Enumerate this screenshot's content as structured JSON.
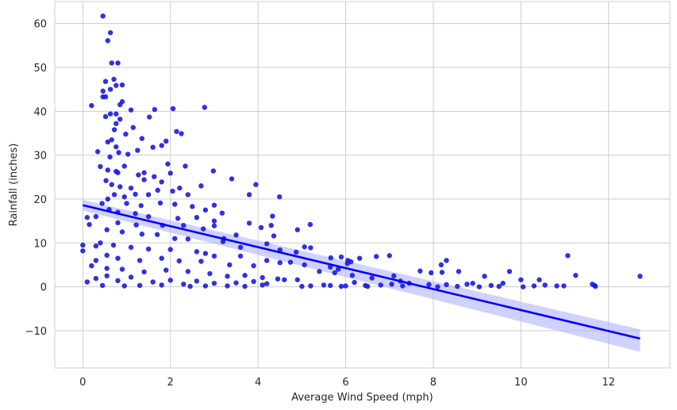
{
  "chart_data": {
    "type": "scatter",
    "title": "",
    "xlabel": "Average Wind Speed (mph)",
    "ylabel": "Rainfall (inches)",
    "xlim": [
      -0.64,
      13.4
    ],
    "ylim": [
      -18.5,
      65
    ],
    "x_ticks": [
      0,
      2,
      4,
      6,
      8,
      10,
      12
    ],
    "y_ticks": [
      -10,
      0,
      10,
      20,
      30,
      40,
      50,
      60
    ],
    "grid": true,
    "legend": "none",
    "point_color": "#1a1ae6",
    "line_color": "#0000ff",
    "ci_color": "#b3b3ff",
    "regression": {
      "x_start": 0,
      "y_start": 18.6,
      "x_end": 12.72,
      "y_end": -11.8,
      "ci_start": [
        17.4,
        19.8
      ],
      "ci_end": [
        -14.8,
        -9.7
      ]
    },
    "series": [
      {
        "values_xy": [
          [
            0.46,
            61.7
          ],
          [
            0.63,
            57.9
          ],
          [
            0.57,
            56.1
          ],
          [
            0.66,
            51.0
          ],
          [
            0.8,
            51.0
          ],
          [
            0.71,
            47.3
          ],
          [
            0.52,
            46.8
          ],
          [
            0.9,
            46.0
          ],
          [
            0.76,
            45.9
          ],
          [
            0.63,
            45.0
          ],
          [
            0.46,
            44.6
          ],
          [
            0.46,
            43.3
          ],
          [
            0.52,
            43.3
          ],
          [
            0.9,
            42.2
          ],
          [
            0.85,
            41.5
          ],
          [
            0.2,
            41.3
          ],
          [
            1.64,
            40.4
          ],
          [
            2.06,
            40.6
          ],
          [
            2.78,
            40.9
          ],
          [
            1.1,
            40.3
          ],
          [
            0.76,
            39.4
          ],
          [
            0.52,
            38.8
          ],
          [
            0.63,
            39.4
          ],
          [
            0.85,
            38.2
          ],
          [
            1.52,
            38.7
          ],
          [
            1.15,
            36.3
          ],
          [
            0.76,
            37.2
          ],
          [
            0.72,
            35.8
          ],
          [
            1.35,
            33.8
          ],
          [
            0.66,
            33.5
          ],
          [
            0.57,
            33.0
          ],
          [
            0.98,
            34.8
          ],
          [
            2.14,
            35.4
          ],
          [
            2.25,
            34.9
          ],
          [
            1.9,
            33.2
          ],
          [
            1.8,
            32.2
          ],
          [
            1.6,
            31.8
          ],
          [
            1.25,
            31.1
          ],
          [
            0.82,
            30.6
          ],
          [
            1.03,
            30.2
          ],
          [
            0.76,
            31.9
          ],
          [
            0.62,
            29.6
          ],
          [
            0.34,
            30.8
          ],
          [
            0.95,
            27.5
          ],
          [
            0.76,
            26.3
          ],
          [
            0.57,
            26.6
          ],
          [
            0.4,
            27.4
          ],
          [
            0.8,
            26.0
          ],
          [
            1.27,
            25.5
          ],
          [
            1.4,
            26.0
          ],
          [
            1.63,
            25.1
          ],
          [
            2.0,
            25.9
          ],
          [
            1.94,
            28.0
          ],
          [
            2.34,
            27.5
          ],
          [
            2.98,
            26.4
          ],
          [
            3.4,
            24.6
          ],
          [
            2.7,
            23.0
          ],
          [
            1.8,
            23.9
          ],
          [
            1.4,
            24.4
          ],
          [
            1.1,
            22.5
          ],
          [
            0.85,
            22.8
          ],
          [
            0.66,
            23.3
          ],
          [
            0.53,
            24.2
          ],
          [
            0.72,
            21.0
          ],
          [
            0.95,
            20.5
          ],
          [
            1.2,
            21.1
          ],
          [
            1.5,
            21.0
          ],
          [
            1.71,
            22.0
          ],
          [
            2.05,
            21.8
          ],
          [
            2.21,
            22.5
          ],
          [
            2.4,
            21.0
          ],
          [
            3.95,
            23.3
          ],
          [
            3.8,
            21.0
          ],
          [
            4.49,
            20.5
          ],
          [
            0.57,
            20.0
          ],
          [
            0.44,
            19.0
          ],
          [
            1.0,
            19.0
          ],
          [
            1.33,
            18.5
          ],
          [
            1.77,
            19.1
          ],
          [
            2.1,
            18.8
          ],
          [
            2.5,
            18.3
          ],
          [
            3.0,
            18.6
          ],
          [
            2.8,
            17.5
          ],
          [
            3.18,
            16.8
          ],
          [
            0.6,
            17.6
          ],
          [
            0.8,
            17.0
          ],
          [
            1.2,
            16.7
          ],
          [
            1.5,
            16.0
          ],
          [
            2.17,
            15.6
          ],
          [
            2.6,
            15.8
          ],
          [
            3.0,
            15.0
          ],
          [
            4.33,
            16.1
          ],
          [
            4.3,
            14.0
          ],
          [
            3.8,
            14.5
          ],
          [
            4.07,
            13.5
          ],
          [
            0.3,
            16.0
          ],
          [
            0.1,
            15.8
          ],
          [
            0.15,
            14.2
          ],
          [
            0.8,
            14.6
          ],
          [
            1.22,
            14.1
          ],
          [
            1.82,
            14.0
          ],
          [
            2.3,
            14.0
          ],
          [
            2.75,
            13.2
          ],
          [
            3.0,
            13.9
          ],
          [
            3.5,
            11.8
          ],
          [
            4.36,
            11.6
          ],
          [
            4.9,
            13.0
          ],
          [
            5.19,
            14.2
          ],
          [
            0.55,
            13.0
          ],
          [
            0.9,
            12.5
          ],
          [
            1.35,
            12.0
          ],
          [
            1.7,
            11.9
          ],
          [
            2.1,
            11.0
          ],
          [
            2.4,
            10.9
          ],
          [
            3.2,
            10.3
          ],
          [
            3.22,
            11.0
          ],
          [
            3.6,
            9.0
          ],
          [
            4.2,
            9.8
          ],
          [
            5.06,
            9.1
          ],
          [
            5.2,
            8.9
          ],
          [
            0.4,
            10.0
          ],
          [
            0.3,
            9.3
          ],
          [
            0.7,
            9.5
          ],
          [
            1.1,
            9.0
          ],
          [
            1.5,
            8.6
          ],
          [
            2.0,
            8.5
          ],
          [
            2.6,
            8.0
          ],
          [
            2.8,
            7.6
          ],
          [
            3.6,
            7.0
          ],
          [
            3.0,
            7.0
          ],
          [
            4.5,
            8.4
          ],
          [
            4.87,
            7.9
          ],
          [
            5.66,
            6.6
          ],
          [
            5.9,
            6.8
          ],
          [
            6.32,
            6.5
          ],
          [
            6.7,
            6.9
          ],
          [
            7.0,
            7.1
          ],
          [
            0.0,
            9.5
          ],
          [
            0.0,
            8.2
          ],
          [
            0.55,
            7.2
          ],
          [
            0.8,
            6.5
          ],
          [
            1.3,
            6.0
          ],
          [
            1.8,
            6.5
          ],
          [
            2.2,
            5.9
          ],
          [
            2.7,
            5.8
          ],
          [
            3.35,
            5.0
          ],
          [
            3.9,
            4.8
          ],
          [
            4.2,
            6.0
          ],
          [
            4.5,
            5.5
          ],
          [
            4.74,
            5.6
          ],
          [
            5.06,
            5.0
          ],
          [
            5.65,
            4.5
          ],
          [
            5.83,
            4.0
          ],
          [
            6.04,
            5.3
          ],
          [
            6.05,
            6.0
          ],
          [
            6.12,
            5.7
          ],
          [
            8.18,
            5.0
          ],
          [
            8.3,
            6.0
          ],
          [
            11.07,
            7.1
          ],
          [
            0.3,
            6.0
          ],
          [
            0.2,
            4.8
          ],
          [
            0.55,
            4.2
          ],
          [
            0.9,
            4.0
          ],
          [
            1.4,
            3.4
          ],
          [
            1.9,
            3.8
          ],
          [
            2.4,
            3.5
          ],
          [
            2.9,
            3.0
          ],
          [
            3.3,
            2.4
          ],
          [
            3.7,
            2.6
          ],
          [
            4.1,
            2.1
          ],
          [
            4.45,
            1.8
          ],
          [
            4.9,
            1.6
          ],
          [
            5.4,
            3.5
          ],
          [
            5.75,
            3.2
          ],
          [
            6.15,
            2.6
          ],
          [
            6.6,
            2.0
          ],
          [
            7.1,
            2.5
          ],
          [
            7.25,
            1.3
          ],
          [
            7.7,
            3.6
          ],
          [
            7.95,
            3.2
          ],
          [
            8.2,
            3.3
          ],
          [
            8.58,
            3.5
          ],
          [
            9.17,
            2.4
          ],
          [
            9.74,
            3.5
          ],
          [
            10.42,
            1.6
          ],
          [
            11.25,
            2.6
          ],
          [
            12.72,
            2.4
          ],
          [
            0.1,
            1.1
          ],
          [
            0.3,
            1.9
          ],
          [
            0.55,
            2.5
          ],
          [
            0.8,
            1.4
          ],
          [
            1.1,
            2.2
          ],
          [
            1.6,
            1.1
          ],
          [
            2.0,
            1.5
          ],
          [
            2.3,
            0.6
          ],
          [
            2.6,
            1.3
          ],
          [
            3.0,
            0.8
          ],
          [
            3.5,
            0.9
          ],
          [
            3.9,
            1.2
          ],
          [
            4.2,
            0.7
          ],
          [
            4.6,
            1.6
          ],
          [
            5.0,
            0.1
          ],
          [
            5.2,
            0.2
          ],
          [
            5.5,
            0.4
          ],
          [
            5.9,
            0.1
          ],
          [
            6.2,
            1.0
          ],
          [
            6.45,
            0.3
          ],
          [
            6.8,
            0.4
          ],
          [
            7.05,
            0.6
          ],
          [
            7.45,
            0.8
          ],
          [
            7.9,
            0.5
          ],
          [
            8.3,
            0.5
          ],
          [
            8.77,
            0.6
          ],
          [
            8.9,
            0.8
          ],
          [
            9.32,
            0.3
          ],
          [
            9.59,
            0.8
          ],
          [
            10.0,
            1.6
          ],
          [
            10.55,
            0.4
          ],
          [
            10.98,
            0.2
          ],
          [
            11.63,
            0.6
          ],
          [
            11.68,
            0.3
          ],
          [
            0.45,
            0.3
          ],
          [
            0.95,
            0.2
          ],
          [
            1.3,
            0.3
          ],
          [
            1.8,
            0.4
          ],
          [
            2.45,
            0.1
          ],
          [
            2.8,
            0.2
          ],
          [
            3.3,
            0.2
          ],
          [
            3.7,
            0.1
          ],
          [
            4.1,
            0.4
          ],
          [
            5.65,
            0.3
          ],
          [
            6.0,
            0.2
          ],
          [
            6.5,
            0.1
          ],
          [
            7.3,
            0.2
          ],
          [
            8.1,
            0.0
          ],
          [
            8.55,
            0.1
          ],
          [
            9.05,
            0.0
          ],
          [
            9.5,
            0.1
          ],
          [
            10.05,
            0.0
          ],
          [
            10.3,
            0.2
          ],
          [
            10.82,
            0.2
          ],
          [
            11.7,
            0.1
          ]
        ]
      }
    ]
  }
}
